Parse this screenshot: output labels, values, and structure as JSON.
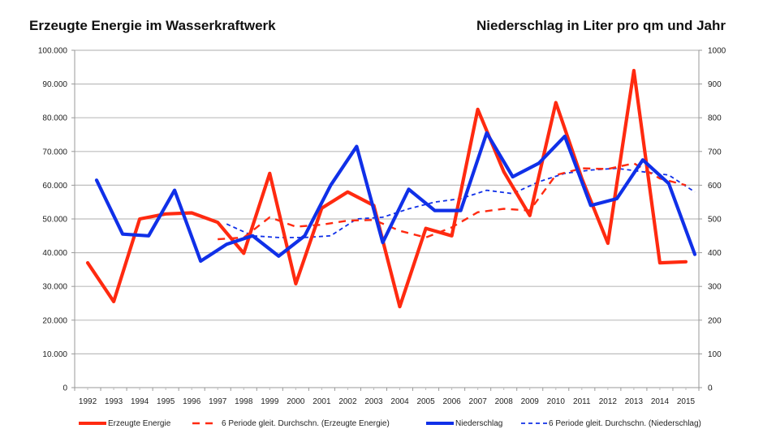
{
  "chart_data": {
    "type": "line",
    "title_left": "Erzeugte Energie im Wasserkraftwerk",
    "title_right": "Niederschlag in Liter pro qm und Jahr",
    "categories": [
      "1992",
      "1993",
      "1994",
      "1995",
      "1996",
      "1997",
      "1998",
      "1999",
      "2000",
      "2001",
      "2002",
      "2003",
      "2004",
      "2005",
      "2006",
      "2007",
      "2008",
      "2009",
      "2010",
      "2011",
      "2012",
      "2013",
      "2014",
      "2015"
    ],
    "y_left": {
      "min": 0,
      "max": 100000,
      "step": 10000,
      "tick_labels": [
        "0",
        "10.000",
        "20.000",
        "30.000",
        "40.000",
        "50.000",
        "60.000",
        "70.000",
        "80.000",
        "90.000",
        "100.000"
      ]
    },
    "y_right": {
      "min": 0,
      "max": 1000,
      "step": 100,
      "tick_labels": [
        "0",
        "100",
        "200",
        "300",
        "400",
        "500",
        "600",
        "700",
        "800",
        "900",
        "1000"
      ]
    },
    "grid": true,
    "legend_position": "bottom",
    "series": [
      {
        "name": "Erzeugte Energie",
        "axis": "left",
        "style": "solid-thick",
        "color": "#ff2a10",
        "values": [
          37000,
          25500,
          50000,
          51500,
          51800,
          49000,
          39800,
          63500,
          30800,
          53200,
          58000,
          54000,
          24000,
          47200,
          45000,
          82500,
          64000,
          51000,
          84500,
          62000,
          42800,
          94000,
          37000,
          37300
        ]
      },
      {
        "name": "6 Periode gleit. Durchschn. (Erzeugte Energie)",
        "axis": "left",
        "style": "dashed",
        "color": "#ff2a10",
        "values": [
          null,
          null,
          null,
          null,
          null,
          44000,
          44500,
          50500,
          47700,
          48300,
          49500,
          49700,
          46500,
          44500,
          47500,
          52000,
          53000,
          52500,
          63000,
          65000,
          64800,
          66500,
          62000,
          60000
        ]
      },
      {
        "name": "Niederschlag",
        "axis": "right",
        "style": "solid-thick",
        "color": "#1030e8",
        "values": [
          615,
          455,
          450,
          585,
          375,
          425,
          450,
          390,
          450,
          600,
          715,
          430,
          588,
          525,
          525,
          755,
          625,
          665,
          745,
          540,
          560,
          675,
          605,
          395
        ]
      },
      {
        "name": "6 Periode gleit. Durchschn. (Niederschlag)",
        "axis": "right",
        "style": "dotted",
        "color": "#1030e8",
        "values": [
          null,
          null,
          null,
          null,
          null,
          485,
          450,
          445,
          445,
          450,
          500,
          505,
          530,
          550,
          560,
          585,
          575,
          610,
          635,
          645,
          650,
          640,
          630,
          580
        ]
      }
    ]
  }
}
